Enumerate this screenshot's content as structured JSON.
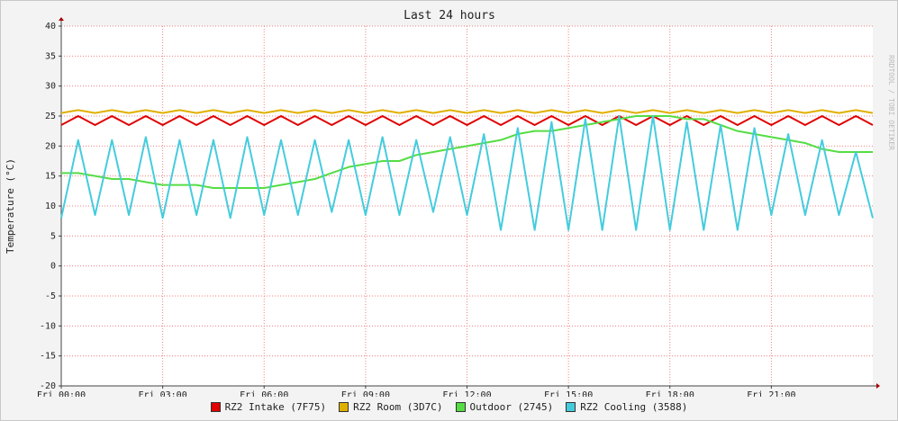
{
  "chart_data": {
    "type": "line",
    "title": "Last 24 hours",
    "y_label": "Temperature (°C)",
    "watermark": "RRDTOOL / TOBI OETIKER",
    "x": [
      0,
      0.5,
      1,
      1.5,
      2,
      2.5,
      3,
      3.5,
      4,
      4.5,
      5,
      5.5,
      6,
      6.5,
      7,
      7.5,
      8,
      8.5,
      9,
      9.5,
      10,
      10.5,
      11,
      11.5,
      12,
      12.5,
      13,
      13.5,
      14,
      14.5,
      15,
      15.5,
      16,
      16.5,
      17,
      17.5,
      18,
      18.5,
      19,
      19.5,
      20,
      20.5,
      21,
      21.5,
      22,
      22.5,
      23,
      23.5,
      24
    ],
    "xlim": [
      0,
      24
    ],
    "xticks": [
      {
        "value": 0,
        "label": "Fri 00:00"
      },
      {
        "value": 3,
        "label": "Fri 03:00"
      },
      {
        "value": 6,
        "label": "Fri 06:00"
      },
      {
        "value": 9,
        "label": "Fri 09:00"
      },
      {
        "value": 12,
        "label": "Fri 12:00"
      },
      {
        "value": 15,
        "label": "Fri 15:00"
      },
      {
        "value": 18,
        "label": "Fri 18:00"
      },
      {
        "value": 21,
        "label": "Fri 21:00"
      }
    ],
    "ylim": [
      -20,
      40
    ],
    "yticks": [
      -20,
      -15,
      -10,
      -5,
      0,
      5,
      10,
      15,
      20,
      25,
      30,
      35,
      40
    ],
    "grid": true,
    "series": [
      {
        "name": "RZ2 Intake (7F75)",
        "color": "#e00000",
        "values": [
          23.5,
          25,
          23.5,
          25,
          23.5,
          25,
          23.5,
          25,
          23.5,
          25,
          23.5,
          25,
          23.5,
          25,
          23.5,
          25,
          23.5,
          25,
          23.5,
          25,
          23.5,
          25,
          23.5,
          25,
          23.5,
          25,
          23.5,
          25,
          23.5,
          25,
          23.5,
          25,
          23.5,
          25,
          23.5,
          25,
          23.5,
          25,
          23.5,
          25,
          23.5,
          25,
          23.5,
          25,
          23.5,
          25,
          23.5,
          25,
          23.5
        ]
      },
      {
        "name": "RZ2 Room (3D7C)",
        "color": "#e0b000",
        "values": [
          25.5,
          26,
          25.5,
          26,
          25.5,
          26,
          25.5,
          26,
          25.5,
          26,
          25.5,
          26,
          25.5,
          26,
          25.5,
          26,
          25.5,
          26,
          25.5,
          26,
          25.5,
          26,
          25.5,
          26,
          25.5,
          26,
          25.5,
          26,
          25.5,
          26,
          25.5,
          26,
          25.5,
          26,
          25.5,
          26,
          25.5,
          26,
          25.5,
          26,
          25.5,
          26,
          25.5,
          26,
          25.5,
          26,
          25.5,
          26,
          25.5
        ]
      },
      {
        "name": "Outdoor (2745)",
        "color": "#55dd44",
        "values": [
          15.5,
          15.5,
          15,
          14.5,
          14.5,
          14,
          13.5,
          13.5,
          13.5,
          13,
          13,
          13,
          13,
          13.5,
          14,
          14.5,
          15.5,
          16.5,
          17,
          17.5,
          17.5,
          18.5,
          19,
          19.5,
          20,
          20.5,
          21,
          22,
          22.5,
          22.5,
          23,
          23.5,
          24,
          24.5,
          25,
          25,
          25,
          24.5,
          24.5,
          23.5,
          22.5,
          22,
          21.5,
          21,
          20.5,
          19.5,
          19,
          19,
          19
        ]
      },
      {
        "name": "RZ2 Cooling (3588)",
        "color": "#44ccdd",
        "values": [
          8,
          21,
          8.5,
          21,
          8.5,
          21.5,
          8,
          21,
          8.5,
          21,
          8,
          21.5,
          8.5,
          21,
          8.5,
          21,
          9,
          21,
          8.5,
          21.5,
          8.5,
          21,
          9,
          21.5,
          8.5,
          22,
          6,
          23,
          6,
          24,
          6,
          24.5,
          6,
          25,
          6,
          25,
          6,
          24,
          6,
          23.5,
          6,
          23,
          8.5,
          22,
          8.5,
          21,
          8.5,
          19,
          8
        ]
      }
    ]
  }
}
